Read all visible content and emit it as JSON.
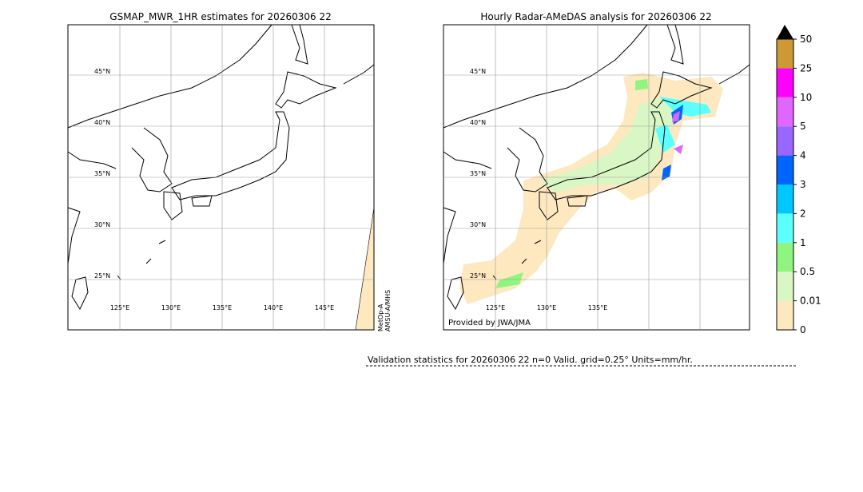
{
  "left_map": {
    "title": "GSMAP_MWR_1HR estimates for 20260306 22",
    "lat_labels": [
      "45°N",
      "40°N",
      "35°N",
      "30°N",
      "25°N"
    ],
    "lon_labels": [
      "125°E",
      "130°E",
      "135°E",
      "140°E",
      "145°E"
    ],
    "satellite_label": [
      "MetOp-A",
      "AMSU-A/MHS"
    ]
  },
  "right_map": {
    "title": "Hourly Radar-AMeDAS analysis for 20260306 22",
    "lat_labels": [
      "45°N",
      "40°N",
      "35°N",
      "30°N",
      "25°N"
    ],
    "lon_labels": [
      "125°E",
      "130°E",
      "135°E"
    ],
    "credit": "Provided by JWA/JMA"
  },
  "colorbar": {
    "labels": [
      "0",
      "0.01",
      "0.5",
      "1",
      "2",
      "3",
      "4",
      "5",
      "10",
      "25",
      "50"
    ],
    "colors": [
      "#fee8c0",
      "#d9f7c4",
      "#90f57f",
      "#5bfffd",
      "#00c8ff",
      "#0064ff",
      "#9966ff",
      "#df66ff",
      "#ff00ff",
      "#cc9933"
    ]
  },
  "validation": "Validation statistics for 20260306 22  n=0 Valid. grid=0.25° Units=mm/hr."
}
